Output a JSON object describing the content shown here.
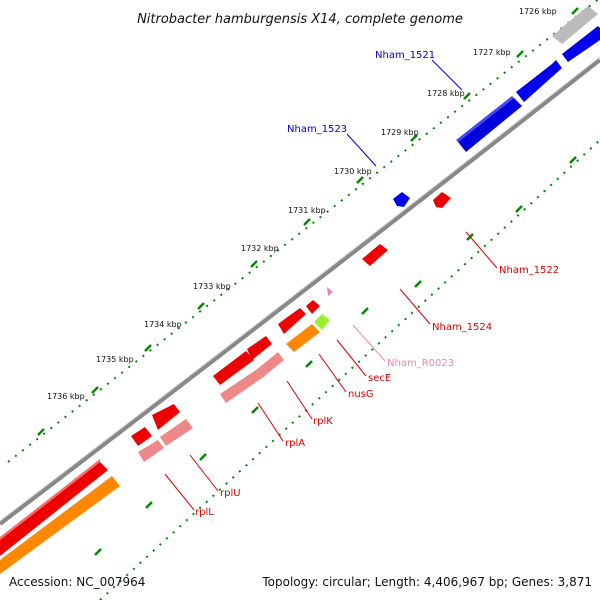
{
  "title": "Nitrobacter hamburgensis X14, complete genome",
  "footer": {
    "accession": "Accession: NC_007964",
    "topology": "Topology: circular; Length: 4,406,967 bp; Genes: 3,871"
  },
  "ticks": [
    "1726 kbp",
    "1727 kbp",
    "1728 kbp",
    "1729 kbp",
    "1730 kbp",
    "1731 kbp",
    "1732 kbp",
    "1733 kbp",
    "1734 kbp",
    "1735 kbp",
    "1736 kbp"
  ],
  "genes": [
    {
      "label": "Nham_1521",
      "color": "#0000cc"
    },
    {
      "label": "Nham_1523",
      "color": "#0000cc"
    },
    {
      "label": "Nham_1522",
      "color": "#dd0000"
    },
    {
      "label": "Nham_1524",
      "color": "#dd0000"
    },
    {
      "label": "Nham_R0023",
      "color": "#ee88aa"
    },
    {
      "label": "secE",
      "color": "#dd0000"
    },
    {
      "label": "nusG",
      "color": "#dd0000"
    },
    {
      "label": "rplK",
      "color": "#dd0000"
    },
    {
      "label": "rplA",
      "color": "#dd0000"
    },
    {
      "label": "rplU",
      "color": "#dd0000"
    },
    {
      "label": "rplL",
      "color": "#dd0000"
    }
  ],
  "colors": {
    "tick_green": "#008800",
    "backbone": "#888888",
    "cds_forward": "#0000ee",
    "cds_reverse": "#ee0000",
    "cds_light": "#ee8888",
    "orange": "#ff8800",
    "lime": "#99ee33",
    "gray_block": "#bbbbbb"
  }
}
